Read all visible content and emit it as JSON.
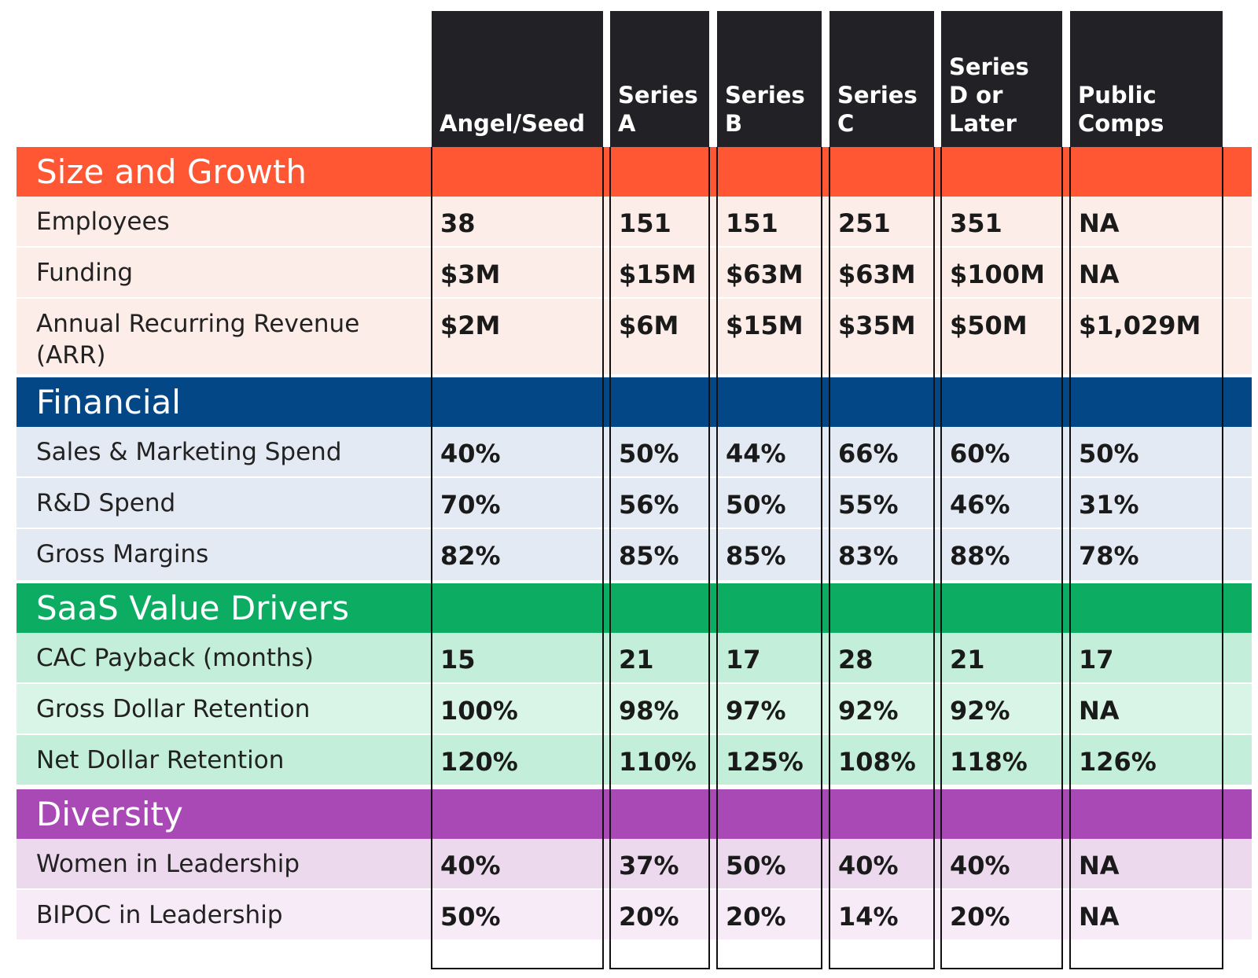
{
  "chart_data": {
    "type": "table",
    "columns": [
      "Angel/Seed",
      "Series\nA",
      "Series\nB",
      "Series\nC",
      "Series\nD or\nLater",
      "Public\nComps"
    ],
    "sections": [
      {
        "title": "Size and Growth",
        "color": "#FF5733",
        "row_colors": [
          "#FCEDE8",
          "#FCEDE8",
          "#FCEDE8"
        ],
        "rows": [
          {
            "label": "Employees",
            "values": [
              "38",
              "151",
              "151",
              "251",
              "351",
              "NA"
            ]
          },
          {
            "label": "Funding",
            "values": [
              "$3M",
              "$15M",
              "$63M",
              "$63M",
              "$100M",
              "NA"
            ]
          },
          {
            "label": "Annual Recurring Revenue\n(ARR)",
            "values": [
              "$2M",
              "$6M",
              "$15M",
              "$35M",
              "$50M",
              "$1,029M"
            ]
          }
        ]
      },
      {
        "title": "Financial",
        "color": "#044787",
        "row_colors": [
          "#E4EAF3",
          "#E4EAF3",
          "#E4EAF3"
        ],
        "rows": [
          {
            "label": "Sales & Marketing Spend",
            "values": [
              "40%",
              "50%",
              "44%",
              "66%",
              "60%",
              "50%"
            ]
          },
          {
            "label": "R&D Spend",
            "values": [
              "70%",
              "56%",
              "50%",
              "55%",
              "46%",
              "31%"
            ]
          },
          {
            "label": "Gross Margins",
            "values": [
              "82%",
              "85%",
              "85%",
              "83%",
              "88%",
              "78%"
            ]
          }
        ]
      },
      {
        "title": "SaaS Value Drivers",
        "color": "#0DAC63",
        "row_colors": [
          "#C3EED9",
          "#D9F5E7",
          "#C3EED9"
        ],
        "rows": [
          {
            "label": "CAC Payback (months)",
            "values": [
              "15",
              "21",
              "17",
              "28",
              "21",
              "17"
            ]
          },
          {
            "label": "Gross Dollar Retention",
            "values": [
              "100%",
              "98%",
              "97%",
              "92%",
              "92%",
              "NA"
            ]
          },
          {
            "label": "Net Dollar Retention",
            "values": [
              "120%",
              "110%",
              "125%",
              "108%",
              "118%",
              "126%"
            ]
          }
        ]
      },
      {
        "title": "Diversity",
        "color": "#A849B6",
        "row_colors": [
          "#ECD9ED",
          "#F6EBF6"
        ],
        "rows": [
          {
            "label": "Women in Leadership",
            "values": [
              "40%",
              "37%",
              "50%",
              "40%",
              "40%",
              "NA"
            ]
          },
          {
            "label": "BIPOC in Leadership",
            "values": [
              "50%",
              "20%",
              "20%",
              "14%",
              "20%",
              "NA"
            ]
          }
        ]
      }
    ]
  }
}
